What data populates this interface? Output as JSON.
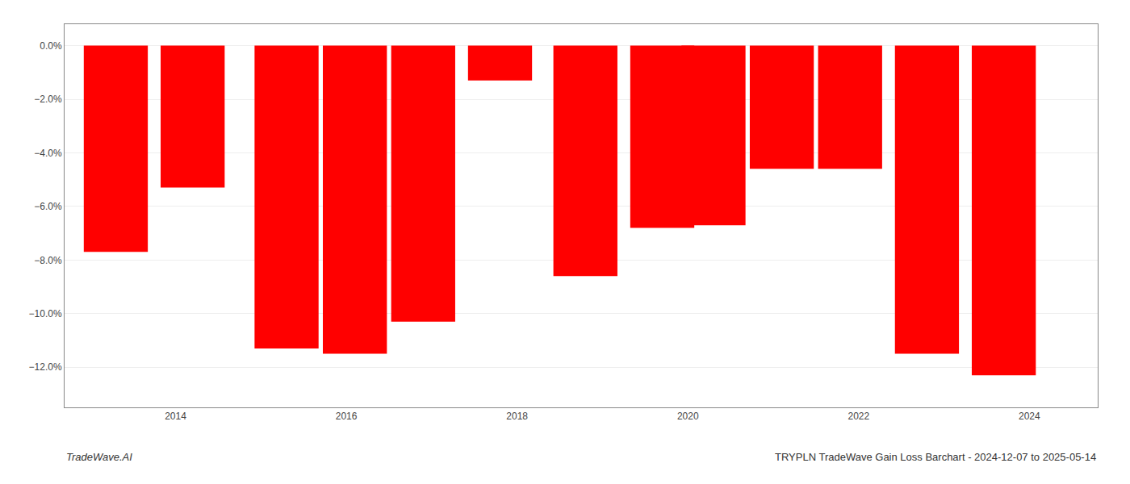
{
  "chart_data": {
    "type": "bar",
    "x": [
      2013.3,
      2014.2,
      2015.3,
      2016.1,
      2016.9,
      2017.8,
      2018.8,
      2019.7,
      2020.3,
      2021.1,
      2021.9,
      2022.8,
      2023.7
    ],
    "values": [
      -7.7,
      -5.3,
      -11.3,
      -11.5,
      -10.3,
      -1.3,
      -8.6,
      -6.8,
      -6.7,
      -4.6,
      -4.6,
      -11.5,
      -12.3
    ],
    "color": "#ff0000",
    "xlim": [
      2012.7,
      2024.8
    ],
    "xticks": [
      2014,
      2016,
      2018,
      2020,
      2022,
      2024
    ],
    "ylim": [
      -13.5,
      0.8
    ],
    "yticks": [
      {
        "value": 0.0,
        "label": "0.0%"
      },
      {
        "value": -2.0,
        "label": "−2.0%"
      },
      {
        "value": -4.0,
        "label": "−4.0%"
      },
      {
        "value": -6.0,
        "label": "−6.0%"
      },
      {
        "value": -8.0,
        "label": "−8.0%"
      },
      {
        "value": -10.0,
        "label": "−10.0%"
      },
      {
        "value": -12.0,
        "label": "−12.0%"
      }
    ],
    "grid": true,
    "annotations": [
      "TradeWave.AI",
      "TRYPLN TradeWave Gain Loss Barchart - 2024-12-07 to 2025-05-14"
    ]
  }
}
